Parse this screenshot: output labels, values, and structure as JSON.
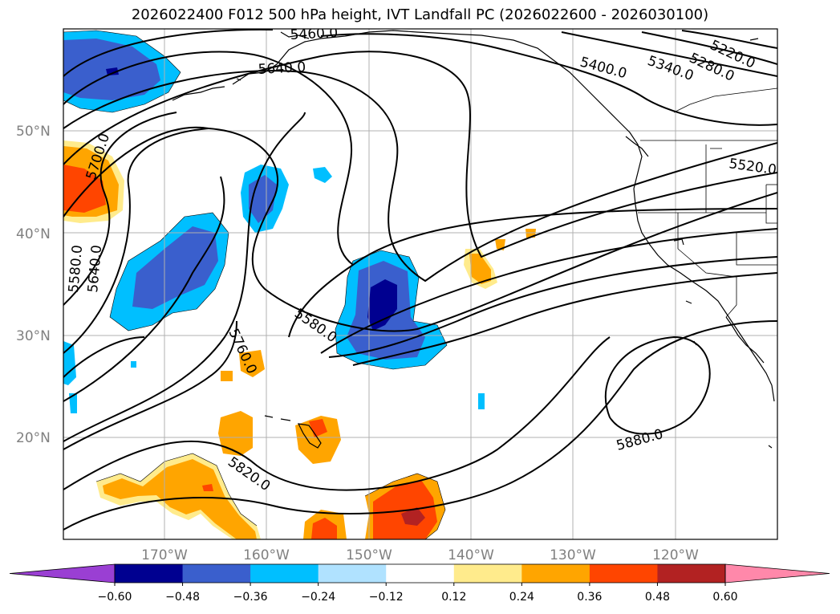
{
  "title": "2026022400 F012 500 hPa height, IVT Landfall PC (2026022600 - 2026030100)",
  "lat_labels": [
    "20°N",
    "30°N",
    "40°N",
    "50°N"
  ],
  "lon_labels": [
    "170°W",
    "160°W",
    "150°W",
    "140°W",
    "130°W",
    "120°W"
  ],
  "colorbar": {
    "ticks": [
      "−0.60",
      "−0.48",
      "−0.36",
      "−0.24",
      "−0.12",
      "0.12",
      "0.24",
      "0.36",
      "0.48",
      "0.60"
    ],
    "colors": [
      "#9a3fd3",
      "#000090",
      "#3a5fcd",
      "#00bfff",
      "#b0e2ff",
      "#ffffff",
      "#ffeb8c",
      "#ffa500",
      "#ff4500",
      "#b22222",
      "#ff88aa"
    ]
  },
  "contour_labels": [
    "5460.0",
    "5640.0",
    "5700.0",
    "5580.0",
    "5640.0",
    "5400.0",
    "5340.0",
    "5280.0",
    "5220.0",
    "5520.0",
    "5580.0",
    "5760.0",
    "5820.0",
    "5880.0"
  ]
}
